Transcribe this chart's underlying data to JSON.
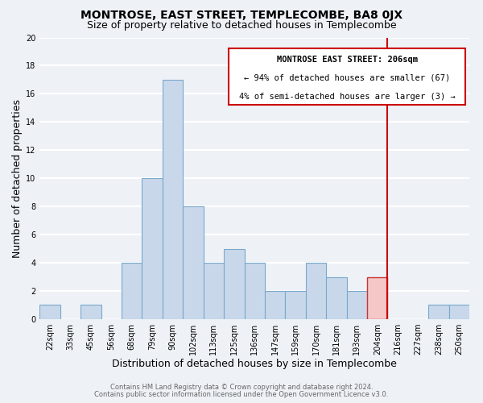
{
  "title": "MONTROSE, EAST STREET, TEMPLECOMBE, BA8 0JX",
  "subtitle": "Size of property relative to detached houses in Templecombe",
  "xlabel": "Distribution of detached houses by size in Templecombe",
  "ylabel": "Number of detached properties",
  "footer_line1": "Contains HM Land Registry data © Crown copyright and database right 2024.",
  "footer_line2": "Contains public sector information licensed under the Open Government Licence v3.0.",
  "bar_labels": [
    "22sqm",
    "33sqm",
    "45sqm",
    "56sqm",
    "68sqm",
    "79sqm",
    "90sqm",
    "102sqm",
    "113sqm",
    "125sqm",
    "136sqm",
    "147sqm",
    "159sqm",
    "170sqm",
    "181sqm",
    "193sqm",
    "204sqm",
    "216sqm",
    "227sqm",
    "238sqm",
    "250sqm"
  ],
  "bar_values": [
    1,
    0,
    1,
    0,
    4,
    10,
    17,
    8,
    4,
    5,
    4,
    2,
    2,
    4,
    3,
    2,
    3,
    0,
    0,
    1,
    1
  ],
  "bar_color": "#c8d8ea",
  "bar_edge_color": "#7aa8cc",
  "highlight_bar_index": 16,
  "highlight_bar_color": "#f5c8c8",
  "highlight_bar_edge_color": "#cc3333",
  "vline_x_index": 16,
  "vline_color": "#cc0000",
  "annotation_title": "MONTROSE EAST STREET: 206sqm",
  "annotation_line1": "← 94% of detached houses are smaller (67)",
  "annotation_line2": "4% of semi-detached houses are larger (3) →",
  "annotation_box_color": "#ffffff",
  "annotation_box_edge_color": "#cc0000",
  "ylim": [
    0,
    20
  ],
  "yticks": [
    0,
    2,
    4,
    6,
    8,
    10,
    12,
    14,
    16,
    18,
    20
  ],
  "background_color": "#eef2f7",
  "grid_color": "#ffffff",
  "title_fontsize": 10,
  "subtitle_fontsize": 9,
  "axis_label_fontsize": 9,
  "tick_fontsize": 7,
  "annotation_fontsize": 7.5,
  "footer_fontsize": 6
}
